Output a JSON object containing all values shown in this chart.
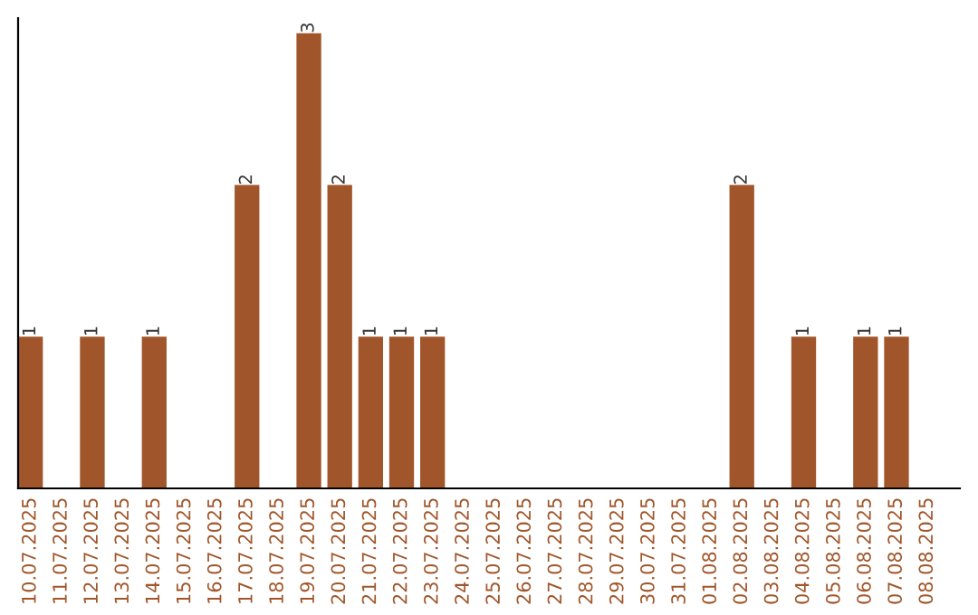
{
  "chart_data": {
    "type": "bar",
    "categories": [
      "10.07.2025",
      "11.07.2025",
      "12.07.2025",
      "13.07.2025",
      "14.07.2025",
      "15.07.2025",
      "16.07.2025",
      "17.07.2025",
      "18.07.2025",
      "19.07.2025",
      "20.07.2025",
      "21.07.2025",
      "22.07.2025",
      "23.07.2025",
      "24.07.2025",
      "25.07.2025",
      "26.07.2025",
      "27.07.2025",
      "28.07.2025",
      "29.07.2025",
      "30.07.2025",
      "31.07.2025",
      "01.08.2025",
      "02.08.2025",
      "03.08.2025",
      "04.08.2025",
      "05.08.2025",
      "06.08.2025",
      "07.08.2025",
      "08.08.2025"
    ],
    "values": [
      1,
      0,
      1,
      0,
      1,
      0,
      0,
      2,
      0,
      3,
      2,
      1,
      1,
      1,
      0,
      0,
      0,
      0,
      0,
      0,
      0,
      0,
      0,
      2,
      0,
      1,
      0,
      1,
      1,
      0
    ],
    "value_labels": [
      "1",
      null,
      "1",
      null,
      "1",
      null,
      null,
      "2",
      null,
      "3",
      "2",
      "1",
      "1",
      "1",
      null,
      null,
      null,
      null,
      null,
      null,
      null,
      null,
      null,
      "2",
      null,
      "1",
      null,
      "1",
      "1",
      null
    ],
    "color": "#a0562a",
    "ylim": [
      0,
      3.1
    ],
    "tick_labels": "x",
    "grid": false,
    "legend": false
  }
}
